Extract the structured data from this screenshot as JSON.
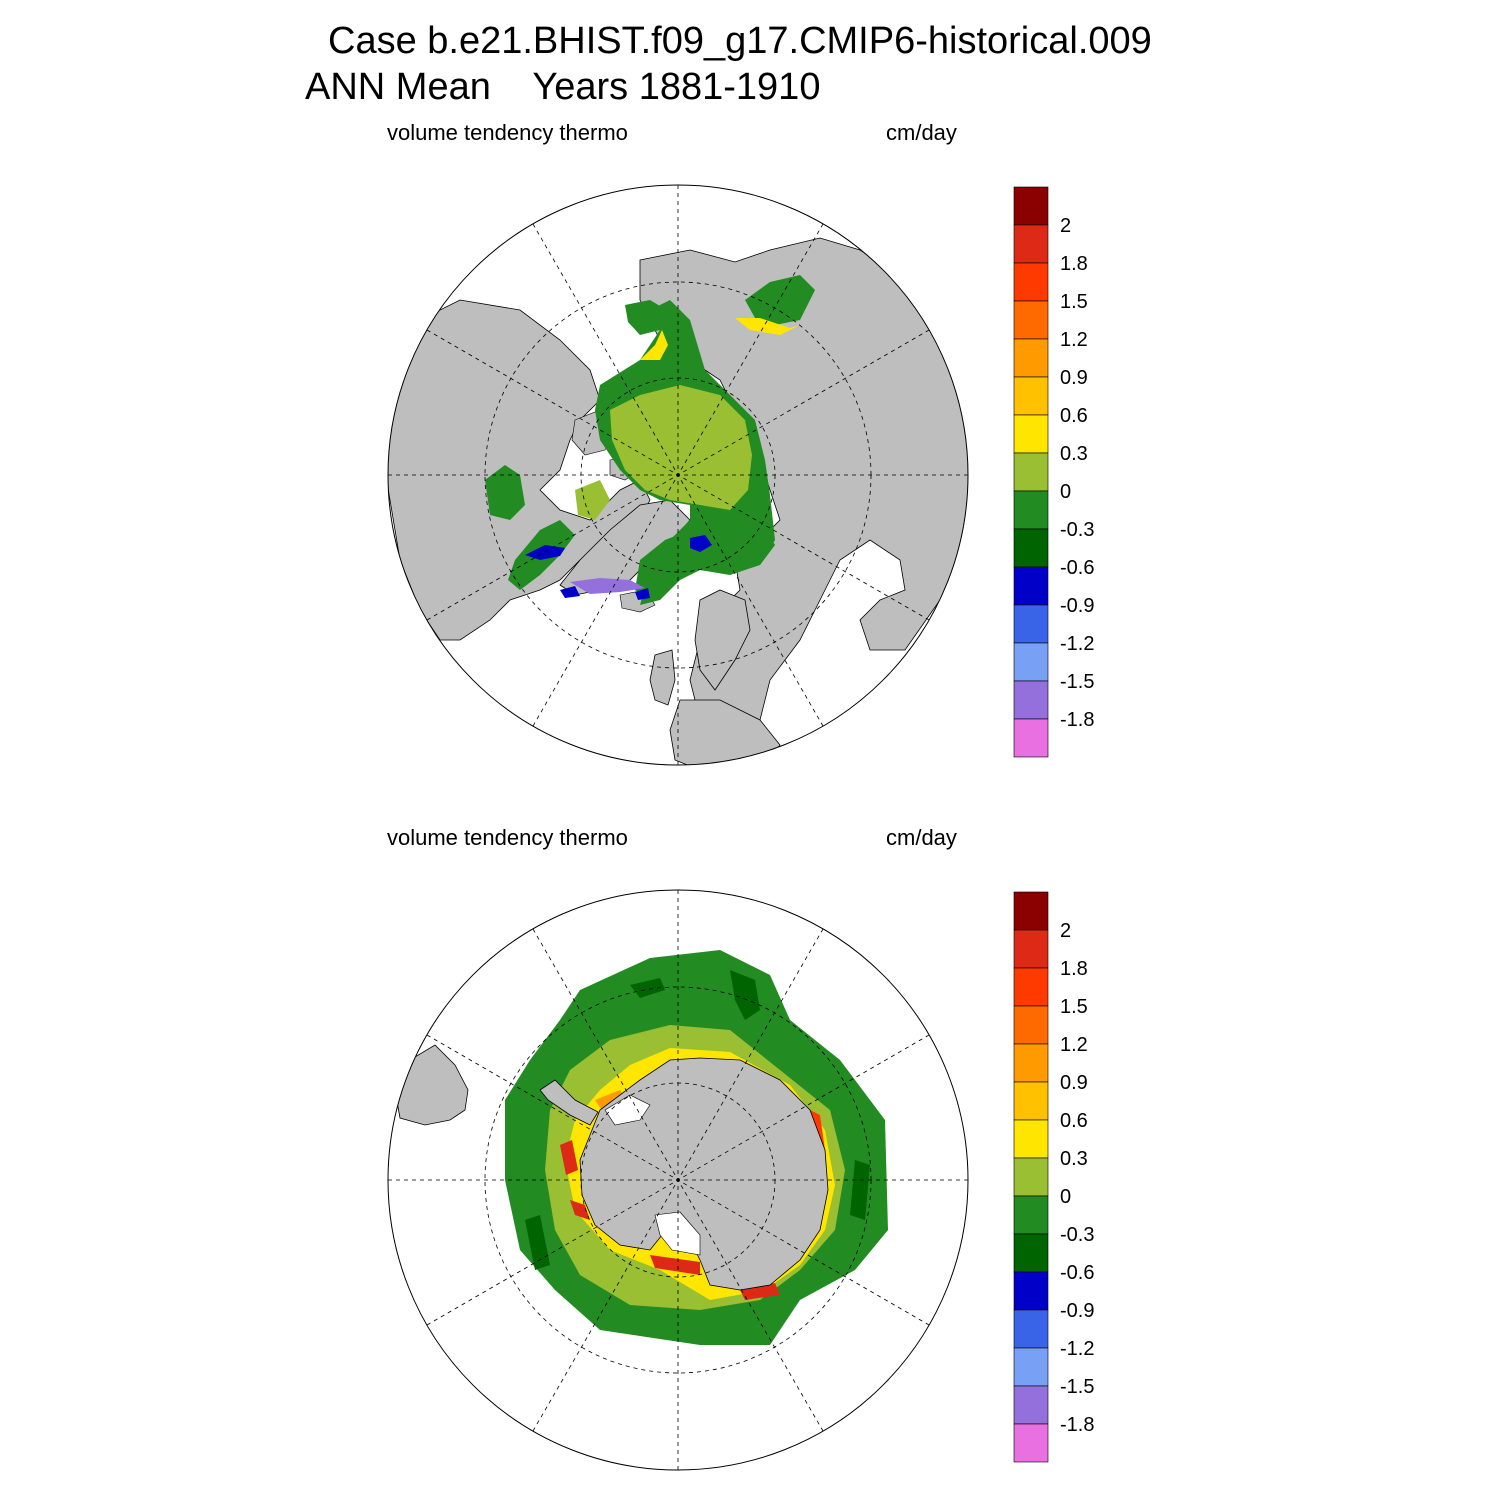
{
  "title": {
    "line1": "Case b.e21.BHIST.f09_g17.CMIP6-historical.009",
    "line2": "ANN Mean    Years 1881-1910"
  },
  "panels": [
    {
      "id": "arctic",
      "variable": "volume tendency thermo",
      "units": "cm/day",
      "hemisphere": "north"
    },
    {
      "id": "antarctic",
      "variable": "volume tendency thermo",
      "units": "cm/day",
      "hemisphere": "south"
    }
  ],
  "colorbar": {
    "labels": [
      "2",
      "1.8",
      "1.5",
      "1.2",
      "0.9",
      "0.6",
      "0.3",
      "0",
      "-0.3",
      "-0.6",
      "-0.9",
      "-1.2",
      "-1.5",
      "-1.8"
    ],
    "colors": [
      "#8b0000",
      "#dc2a16",
      "#ff3a00",
      "#ff6a00",
      "#ff9a00",
      "#ffc000",
      "#ffe600",
      "#9abf33",
      "#228b22",
      "#006400",
      "#0000c8",
      "#3a64e8",
      "#78a0f4",
      "#9370db",
      "#e870e0"
    ]
  },
  "map_colors": {
    "land": "#bebebe",
    "no_data": "#ffffff",
    "grid": "#000000"
  }
}
